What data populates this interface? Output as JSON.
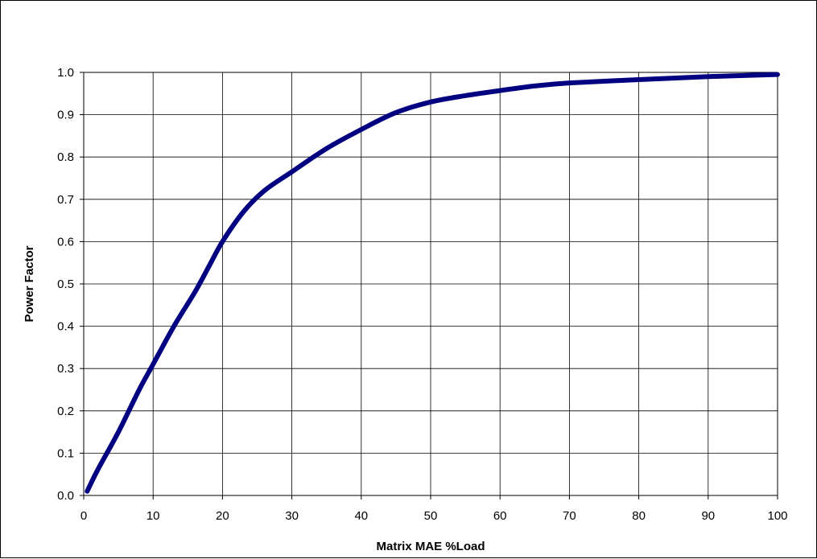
{
  "chart_data": {
    "type": "line",
    "title": "",
    "xlabel": "Matrix MAE %Load",
    "ylabel": "Power Factor",
    "xlim": [
      0,
      100
    ],
    "ylim": [
      0.0,
      1.0
    ],
    "x_ticks": [
      "0",
      "10",
      "20",
      "30",
      "40",
      "50",
      "60",
      "70",
      "80",
      "90",
      "100"
    ],
    "y_ticks": [
      "0.0",
      "0.1",
      "0.2",
      "0.3",
      "0.4",
      "0.5",
      "0.6",
      "0.7",
      "0.8",
      "0.9",
      "1.0"
    ],
    "grid": true,
    "legend": "none",
    "series": [
      {
        "color": "#000080",
        "x": [
          0.5,
          2,
          5,
          8,
          10,
          13,
          16,
          18,
          20,
          23,
          26,
          30,
          35,
          40,
          45,
          50,
          55,
          60,
          65,
          70,
          80,
          90,
          100
        ],
        "y": [
          0.01,
          0.06,
          0.15,
          0.25,
          0.31,
          0.4,
          0.48,
          0.54,
          0.6,
          0.67,
          0.72,
          0.765,
          0.82,
          0.865,
          0.905,
          0.93,
          0.945,
          0.957,
          0.968,
          0.975,
          0.983,
          0.99,
          0.995
        ]
      }
    ]
  }
}
